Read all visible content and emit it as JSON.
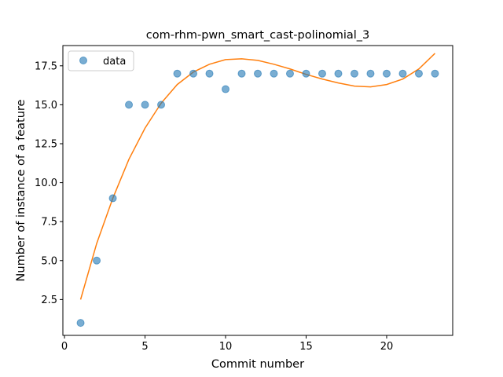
{
  "chart_data": {
    "type": "scatter",
    "title": "com-rhm-pwn_smart_cast-polinomial_3",
    "xlabel": "Commit number",
    "ylabel": "Number of instance of a feature",
    "xlim": [
      -0.1,
      24.1
    ],
    "ylim": [
      0.2,
      18.8
    ],
    "xticks": [
      0,
      5,
      10,
      15,
      20
    ],
    "xtick_labels": [
      "0",
      "5",
      "10",
      "15",
      "20"
    ],
    "yticks": [
      2.5,
      5.0,
      7.5,
      10.0,
      12.5,
      15.0,
      17.5
    ],
    "ytick_labels": [
      "2.5",
      "5.0",
      "7.5",
      "10.0",
      "12.5",
      "15.0",
      "17.5"
    ],
    "legend": {
      "placement": "top-left",
      "entries": [
        "data"
      ]
    },
    "grid": false,
    "series": [
      {
        "name": "data",
        "kind": "scatter",
        "color": "#1f77b4",
        "x": [
          1,
          2,
          3,
          4,
          5,
          6,
          7,
          8,
          9,
          10,
          11,
          12,
          13,
          14,
          15,
          16,
          17,
          18,
          19,
          20,
          21,
          22,
          23
        ],
        "y": [
          1,
          5,
          9,
          15,
          15,
          15,
          17,
          17,
          17,
          16,
          17,
          17,
          17,
          17,
          17,
          17,
          17,
          17,
          17,
          17,
          17,
          17,
          17
        ]
      },
      {
        "kind": "line",
        "color": "#ff7f0e",
        "x": [
          1,
          2,
          3,
          4,
          5,
          6,
          7,
          8,
          9,
          10,
          11,
          12,
          13,
          14,
          15,
          16,
          17,
          18,
          19,
          20,
          21,
          22,
          23
        ],
        "y": [
          2.5,
          6.1,
          9.0,
          11.5,
          13.5,
          15.1,
          16.3,
          17.1,
          17.6,
          17.9,
          17.95,
          17.85,
          17.6,
          17.3,
          16.95,
          16.65,
          16.4,
          16.2,
          16.15,
          16.3,
          16.65,
          17.3,
          18.3
        ]
      }
    ]
  }
}
